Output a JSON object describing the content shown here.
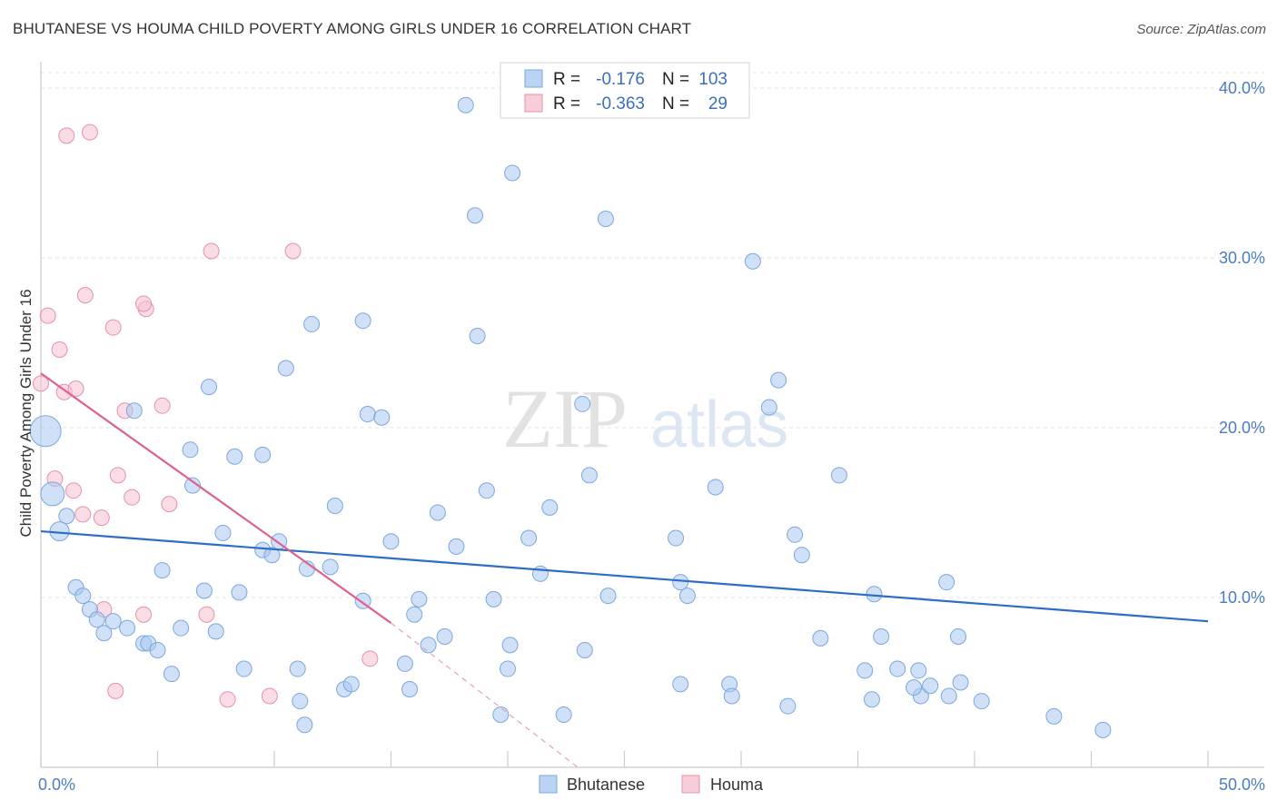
{
  "title": "BHUTANESE VS HOUMA CHILD POVERTY AMONG GIRLS UNDER 16 CORRELATION CHART",
  "source": "Source: ZipAtlas.com",
  "watermark": {
    "zip": "ZIP",
    "atlas": "atlas"
  },
  "chart_data": {
    "type": "scatter",
    "ylabel": "Child Poverty Among Girls Under 16",
    "xlim": [
      0,
      50
    ],
    "ylim": [
      0,
      40
    ],
    "x_tick_labels": [
      {
        "value": 0,
        "label": "0.0%"
      },
      {
        "value": 50,
        "label": "50.0%"
      }
    ],
    "y_tick_labels": [
      {
        "value": 10,
        "label": "10.0%"
      },
      {
        "value": 20,
        "label": "20.0%"
      },
      {
        "value": 30,
        "label": "30.0%"
      },
      {
        "value": 40,
        "label": "40.0%"
      }
    ],
    "grid": true,
    "legend_position": "top-center",
    "series": [
      {
        "name": "Bhutanese",
        "color": "#7aa7e0",
        "fill": "#aac8f0",
        "r_label": "R =",
        "r_value": "-0.176",
        "n_label": "N =",
        "n_value": "103",
        "trend": {
          "x0": 0,
          "y0": 13.9,
          "x1": 50,
          "y1": 8.6
        },
        "points": [
          [
            18.2,
            39.0
          ],
          [
            20.2,
            35.0
          ],
          [
            18.6,
            32.5
          ],
          [
            24.2,
            32.3
          ],
          [
            30.5,
            29.8
          ],
          [
            11.6,
            26.1
          ],
          [
            13.8,
            26.3
          ],
          [
            18.7,
            25.4
          ],
          [
            10.5,
            23.5
          ],
          [
            31.6,
            22.8
          ],
          [
            7.2,
            22.4
          ],
          [
            4.0,
            21.0
          ],
          [
            23.2,
            21.4
          ],
          [
            31.2,
            21.2
          ],
          [
            14.0,
            20.8
          ],
          [
            14.6,
            20.6
          ],
          [
            6.4,
            18.7
          ],
          [
            8.3,
            18.3
          ],
          [
            9.5,
            18.4
          ],
          [
            34.2,
            17.2
          ],
          [
            23.5,
            17.2
          ],
          [
            6.5,
            16.6
          ],
          [
            28.9,
            16.5
          ],
          [
            19.1,
            16.3
          ],
          [
            0.2,
            19.8
          ],
          [
            0.5,
            16.1
          ],
          [
            12.6,
            15.4
          ],
          [
            21.8,
            15.3
          ],
          [
            17.0,
            15.0
          ],
          [
            1.1,
            14.8
          ],
          [
            0.8,
            13.9
          ],
          [
            7.8,
            13.8
          ],
          [
            20.9,
            13.5
          ],
          [
            27.2,
            13.5
          ],
          [
            32.3,
            13.7
          ],
          [
            10.2,
            13.3
          ],
          [
            15.0,
            13.3
          ],
          [
            17.8,
            13.0
          ],
          [
            9.5,
            12.8
          ],
          [
            9.9,
            12.5
          ],
          [
            32.6,
            12.5
          ],
          [
            11.4,
            11.7
          ],
          [
            12.4,
            11.8
          ],
          [
            5.2,
            11.6
          ],
          [
            21.4,
            11.4
          ],
          [
            27.4,
            10.9
          ],
          [
            38.8,
            10.9
          ],
          [
            1.5,
            10.6
          ],
          [
            7.0,
            10.4
          ],
          [
            8.5,
            10.3
          ],
          [
            35.7,
            10.2
          ],
          [
            27.7,
            10.1
          ],
          [
            24.3,
            10.1
          ],
          [
            19.4,
            9.9
          ],
          [
            16.2,
            9.9
          ],
          [
            13.8,
            9.8
          ],
          [
            1.8,
            10.1
          ],
          [
            2.1,
            9.3
          ],
          [
            2.4,
            8.7
          ],
          [
            3.1,
            8.6
          ],
          [
            3.7,
            8.2
          ],
          [
            6.0,
            8.2
          ],
          [
            7.5,
            8.0
          ],
          [
            2.7,
            7.9
          ],
          [
            4.4,
            7.3
          ],
          [
            4.6,
            7.3
          ],
          [
            16.0,
            9.0
          ],
          [
            16.6,
            7.2
          ],
          [
            17.3,
            7.7
          ],
          [
            5.0,
            6.9
          ],
          [
            20.1,
            7.2
          ],
          [
            23.3,
            6.9
          ],
          [
            33.4,
            7.6
          ],
          [
            36.0,
            7.7
          ],
          [
            39.3,
            7.7
          ],
          [
            15.6,
            6.1
          ],
          [
            11.0,
            5.8
          ],
          [
            8.7,
            5.8
          ],
          [
            5.6,
            5.5
          ],
          [
            20.0,
            5.8
          ],
          [
            35.3,
            5.7
          ],
          [
            36.7,
            5.8
          ],
          [
            37.6,
            5.7
          ],
          [
            29.5,
            4.9
          ],
          [
            15.8,
            4.6
          ],
          [
            13.0,
            4.6
          ],
          [
            13.3,
            4.9
          ],
          [
            27.4,
            4.9
          ],
          [
            29.6,
            4.2
          ],
          [
            35.6,
            4.0
          ],
          [
            37.7,
            4.2
          ],
          [
            38.1,
            4.8
          ],
          [
            39.4,
            5.0
          ],
          [
            38.9,
            4.2
          ],
          [
            40.3,
            3.9
          ],
          [
            11.1,
            3.9
          ],
          [
            32.0,
            3.6
          ],
          [
            19.7,
            3.1
          ],
          [
            22.4,
            3.1
          ],
          [
            43.4,
            3.0
          ],
          [
            11.3,
            2.5
          ],
          [
            45.5,
            2.2
          ],
          [
            37.4,
            4.7
          ]
        ]
      },
      {
        "name": "Houma",
        "color": "#e890ab",
        "fill": "#f5c0d0",
        "r_label": "R =",
        "r_value": "-0.363",
        "n_label": "N =",
        "n_value": "29",
        "trend": {
          "x0": 0,
          "y0": 23.2,
          "x1": 15.0,
          "y1": 8.5
        },
        "trend_dashed": {
          "x0": 15.0,
          "y0": 8.5,
          "x1": 23.0,
          "y1": 0.0
        },
        "points": [
          [
            1.1,
            37.2
          ],
          [
            2.1,
            37.4
          ],
          [
            7.3,
            30.4
          ],
          [
            10.8,
            30.4
          ],
          [
            1.9,
            27.8
          ],
          [
            4.5,
            27.0
          ],
          [
            0.3,
            26.6
          ],
          [
            3.1,
            25.9
          ],
          [
            4.4,
            27.3
          ],
          [
            0.8,
            24.6
          ],
          [
            1.0,
            22.1
          ],
          [
            1.5,
            22.3
          ],
          [
            0.0,
            22.6
          ],
          [
            3.6,
            21.0
          ],
          [
            5.2,
            21.3
          ],
          [
            0.6,
            17.0
          ],
          [
            3.3,
            17.2
          ],
          [
            1.4,
            16.3
          ],
          [
            3.9,
            15.9
          ],
          [
            5.5,
            15.5
          ],
          [
            1.8,
            14.9
          ],
          [
            2.6,
            14.7
          ],
          [
            2.7,
            9.3
          ],
          [
            4.4,
            9.0
          ],
          [
            7.1,
            9.0
          ],
          [
            14.1,
            6.4
          ],
          [
            3.2,
            4.5
          ],
          [
            8.0,
            4.0
          ],
          [
            9.8,
            4.2
          ]
        ]
      }
    ]
  }
}
